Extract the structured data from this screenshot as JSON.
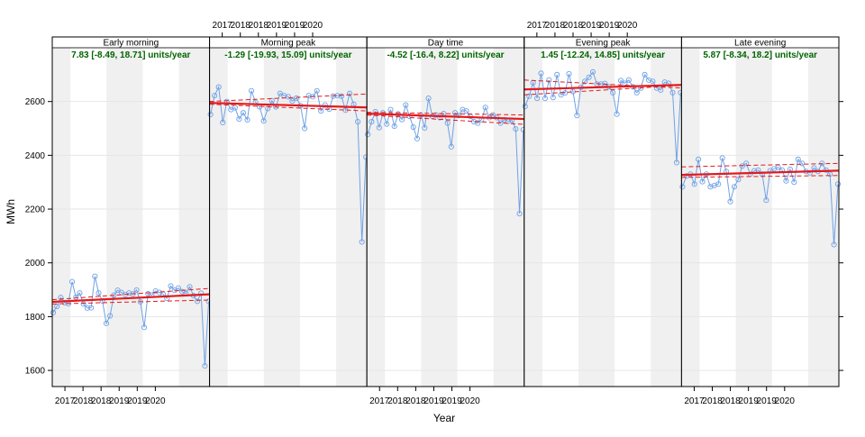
{
  "chart_data": {
    "type": "line",
    "xlabel": "Year",
    "ylabel": "MWh",
    "ylim": [
      1540,
      2800
    ],
    "xlim": [
      2016.5,
      2020.85
    ],
    "y_ticks": [
      1600,
      1800,
      2000,
      2200,
      2400,
      2600
    ],
    "x_ticks": [
      {
        "value": 2016.85,
        "label": "2017"
      },
      {
        "value": 2017.35,
        "label": "2018"
      },
      {
        "value": 2017.85,
        "label": "2018"
      },
      {
        "value": 2018.35,
        "label": "2019"
      },
      {
        "value": 2018.85,
        "label": "2019"
      },
      {
        "value": 2019.35,
        "label": "2020"
      }
    ],
    "shaded_bands": [
      [
        2016.5,
        2017.0
      ],
      [
        2018.0,
        2019.0
      ],
      [
        2020.0,
        2020.85
      ]
    ],
    "grid": true,
    "colors": {
      "series": "#6fa1e6",
      "trend": "#e41a1c",
      "ci": "#e41a1c",
      "annotation": "#006400",
      "band": "#f0f0f0",
      "strip_text": "#000000"
    },
    "panels": [
      {
        "name": "Early morning",
        "annotation": "7.83 [-8.49, 18.71] units/year",
        "trend": {
          "start": 1855,
          "end": 1883
        },
        "ci_upper": {
          "start": 1863,
          "end": 1905
        },
        "ci_lower": {
          "start": 1847,
          "end": 1862
        },
        "values": [
          1815,
          1838,
          1871,
          1852,
          1848,
          1930,
          1872,
          1888,
          1847,
          1832,
          1833,
          1950,
          1888,
          1858,
          1775,
          1803,
          1880,
          1898,
          1890,
          1882,
          1888,
          1884,
          1899,
          1855,
          1760,
          1885,
          1880,
          1895,
          1890,
          1883,
          1868,
          1914,
          1898,
          1906,
          1893,
          1886,
          1911,
          1878,
          1857,
          1887,
          1617,
          1857
        ]
      },
      {
        "name": "Morning peak",
        "annotation": "-1.29 [-19.93, 15.09] units/year",
        "trend": {
          "start": 2595,
          "end": 2578
        },
        "ci_upper": {
          "start": 2600,
          "end": 2628
        },
        "ci_lower": {
          "start": 2590,
          "end": 2565
        },
        "values": [
          2552,
          2622,
          2654,
          2522,
          2600,
          2570,
          2577,
          2535,
          2558,
          2532,
          2640,
          2598,
          2580,
          2528,
          2574,
          2603,
          2580,
          2630,
          2622,
          2618,
          2602,
          2613,
          2585,
          2500,
          2622,
          2618,
          2640,
          2565,
          2587,
          2572,
          2620,
          2622,
          2620,
          2568,
          2630,
          2590,
          2525,
          2078,
          2393
        ]
      },
      {
        "name": "Day time",
        "annotation": "-4.52 [-16.4, 8.22] units/year",
        "trend": {
          "start": 2555,
          "end": 2535
        },
        "ci_upper": {
          "start": 2560,
          "end": 2550
        },
        "ci_lower": {
          "start": 2550,
          "end": 2515
        },
        "values": [
          2478,
          2525,
          2562,
          2503,
          2558,
          2516,
          2570,
          2508,
          2554,
          2533,
          2587,
          2545,
          2505,
          2462,
          2550,
          2502,
          2612,
          2545,
          2550,
          2540,
          2555,
          2520,
          2432,
          2558,
          2548,
          2570,
          2565,
          2545,
          2525,
          2520,
          2533,
          2578,
          2540,
          2550,
          2540,
          2520,
          2532,
          2527,
          2530,
          2498,
          2183,
          2495
        ]
      },
      {
        "name": "Evening peak",
        "annotation": "1.45 [-12.24, 14.85] units/year",
        "trend": {
          "start": 2645,
          "end": 2662
        },
        "ci_upper": {
          "start": 2680,
          "end": 2650
        },
        "ci_lower": {
          "start": 2625,
          "end": 2660
        },
        "values": [
          2582,
          2620,
          2670,
          2612,
          2705,
          2612,
          2680,
          2615,
          2700,
          2625,
          2632,
          2703,
          2637,
          2548,
          2653,
          2675,
          2690,
          2710,
          2665,
          2665,
          2667,
          2655,
          2633,
          2553,
          2678,
          2668,
          2680,
          2655,
          2633,
          2650,
          2700,
          2680,
          2675,
          2650,
          2643,
          2672,
          2668,
          2633,
          2373,
          2633
        ]
      },
      {
        "name": "Late evening",
        "annotation": "5.87 [-8.34, 18.2] units/year",
        "trend": {
          "start": 2327,
          "end": 2343
        },
        "ci_upper": {
          "start": 2357,
          "end": 2370
        },
        "ci_lower": {
          "start": 2318,
          "end": 2325
        },
        "values": [
          2283,
          2323,
          2330,
          2293,
          2385,
          2302,
          2330,
          2283,
          2288,
          2293,
          2390,
          2340,
          2228,
          2283,
          2310,
          2360,
          2370,
          2330,
          2342,
          2345,
          2330,
          2233,
          2343,
          2350,
          2355,
          2345,
          2305,
          2348,
          2300,
          2385,
          2370,
          2340,
          2335,
          2353,
          2340,
          2370,
          2345,
          2330,
          2068,
          2293
        ]
      }
    ]
  }
}
